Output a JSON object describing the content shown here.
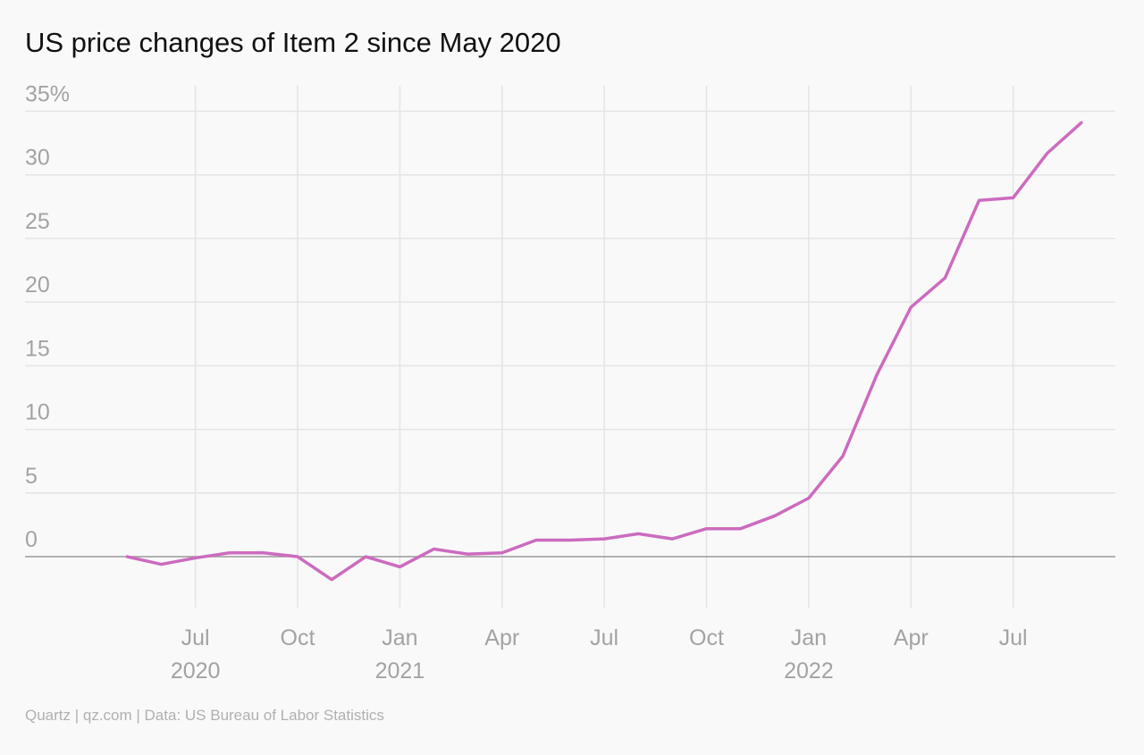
{
  "chart_data": {
    "type": "line",
    "title": "US price changes of Item 2 since May 2020",
    "source": "Quartz | qz.com | Data: US Bureau of Labor Statistics",
    "x": [
      "2020-05",
      "2020-06",
      "2020-07",
      "2020-08",
      "2020-09",
      "2020-10",
      "2020-11",
      "2020-12",
      "2021-01",
      "2021-02",
      "2021-03",
      "2021-04",
      "2021-05",
      "2021-06",
      "2021-07",
      "2021-08",
      "2021-09",
      "2021-10",
      "2021-11",
      "2021-12",
      "2022-01",
      "2022-02",
      "2022-03",
      "2022-04",
      "2022-05",
      "2022-06",
      "2022-07",
      "2022-08",
      "2022-09"
    ],
    "series": [
      {
        "name": "Item 2",
        "color": "#cc6bbf",
        "values": [
          0,
          -0.6,
          -0.1,
          0.3,
          0.3,
          0,
          -1.8,
          0,
          -0.8,
          0.6,
          0.2,
          0.3,
          1.3,
          1.3,
          1.4,
          1.8,
          1.4,
          2.2,
          2.2,
          3.2,
          4.6,
          7.9,
          14.3,
          19.6,
          21.9,
          28.0,
          28.2,
          31.7,
          34.1
        ]
      }
    ],
    "xlim": [
      "2020-02",
      "2022-10"
    ],
    "xticks": [
      {
        "value": "2020-07",
        "label": "Jul 2020"
      },
      {
        "value": "2020-10",
        "label": "Oct"
      },
      {
        "value": "2021-01",
        "label": "Jan 2021"
      },
      {
        "value": "2021-04",
        "label": "Apr"
      },
      {
        "value": "2021-07",
        "label": "Jul"
      },
      {
        "value": "2021-10",
        "label": "Oct"
      },
      {
        "value": "2022-01",
        "label": "Jan 2022"
      },
      {
        "value": "2022-04",
        "label": "Apr"
      },
      {
        "value": "2022-07",
        "label": "Jul"
      }
    ],
    "ylim": [
      -4,
      37
    ],
    "yticks": [
      0,
      5,
      10,
      15,
      20,
      25,
      30,
      {
        "value": 35,
        "label": "35%"
      }
    ],
    "grid": true
  }
}
